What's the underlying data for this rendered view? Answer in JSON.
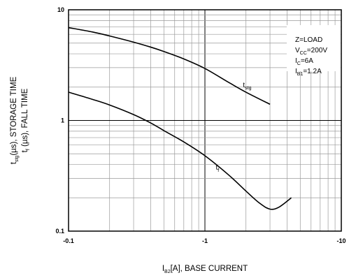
{
  "chart_data": {
    "type": "line",
    "xscale": "log",
    "yscale": "log",
    "xlim": [
      0.1,
      10
    ],
    "ylim": [
      0.1,
      10
    ],
    "x_tick_labels": [
      "-0.1",
      "-1",
      "-10"
    ],
    "y_tick_labels": [
      "0.1",
      "1",
      "10"
    ],
    "grid": true,
    "xlabel": {
      "prefix": "I",
      "sub": "B2",
      "suffix": "[A], BASE CURRENT"
    },
    "ylabel_line1": {
      "prefix": "t",
      "sub": "stg",
      "suffix": "(µs), STORAGE TIME"
    },
    "ylabel_line2": {
      "prefix": "t",
      "sub": "f",
      "suffix": " (µs), FALL TIME"
    },
    "conditions": [
      {
        "prefix": "Z=LOAD",
        "sub": "",
        "suffix": ""
      },
      {
        "prefix": "V",
        "sub": "CC",
        "suffix": "=200V"
      },
      {
        "prefix": "I",
        "sub": "C",
        "suffix": "=6A"
      },
      {
        "prefix": "I",
        "sub": "B1",
        "suffix": "=1.2A"
      }
    ],
    "series": [
      {
        "label": {
          "prefix": "t",
          "sub": "stg"
        },
        "x": [
          0.1,
          0.15,
          0.2,
          0.3,
          0.4,
          0.5,
          0.7,
          1.0,
          1.5,
          2.0,
          3.0
        ],
        "y": [
          6.9,
          6.3,
          5.8,
          5.1,
          4.6,
          4.2,
          3.6,
          2.95,
          2.2,
          1.8,
          1.4
        ]
      },
      {
        "label": {
          "prefix": "t",
          "sub": "f"
        },
        "x": [
          0.1,
          0.15,
          0.2,
          0.3,
          0.4,
          0.5,
          0.7,
          1.0,
          1.5,
          2.0,
          2.5,
          3.0,
          3.5,
          4.3
        ],
        "y": [
          1.8,
          1.55,
          1.38,
          1.13,
          0.95,
          0.81,
          0.64,
          0.48,
          0.32,
          0.23,
          0.18,
          0.158,
          0.165,
          0.2
        ]
      }
    ],
    "series_label_points": [
      {
        "x": 1.9,
        "y": 2.0
      },
      {
        "x": 1.2,
        "y": 0.36
      }
    ]
  }
}
